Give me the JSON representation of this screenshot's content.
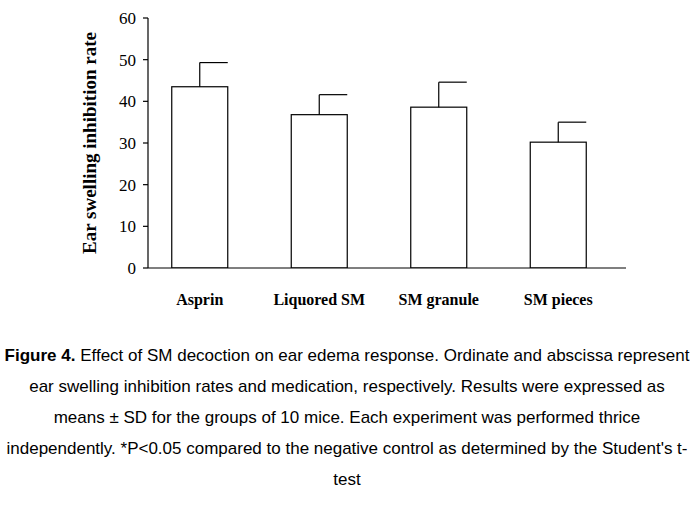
{
  "chart_data": {
    "type": "bar",
    "y_label": "Ear swelling inhibition rate",
    "categories": [
      "Asprin",
      "Liquored SM",
      "SM granule",
      "SM pieces"
    ],
    "values": [
      43.5,
      36.8,
      38.6,
      30.2
    ],
    "errors": [
      5.8,
      4.8,
      6.0,
      4.8
    ],
    "color": "#ffffff",
    "ylim": [
      0,
      60
    ],
    "yticks": [
      0,
      10,
      20,
      30,
      40,
      50,
      60
    ],
    "grid": false,
    "caption_label": "Figure 4.",
    "caption": "Effect of SM decoction on ear edema response. Ordinate and abscissa represent ear swelling inhibition rates and medication, respectively. Results were expressed as means ± SD for the groups of 10 mice. Each experiment was performed thrice independently. *P<0.05 compared to the negative control as determined by the Student's t-test"
  }
}
